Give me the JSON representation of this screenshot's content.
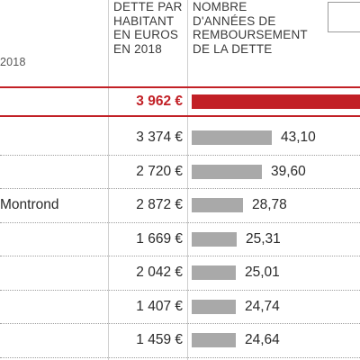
{
  "header": {
    "left_year": "2018",
    "col_debt": "DETTE PAR\nHABITANT\nEN EUROS\nEN 2018",
    "col_years": "NOMBRE\nD'ANNÉES DE\nREMBOURSEMENT\nDE LA DETTE"
  },
  "highlight": {
    "debt": "3 962 €",
    "bar_fraction": 1.0
  },
  "rows": [
    {
      "name": "",
      "debt": "3 374 €",
      "years": "43,10",
      "years_value": 43.1
    },
    {
      "name": "",
      "debt": "2 720 €",
      "years": "39,60",
      "years_value": 39.6
    },
    {
      "name": "Montrond",
      "debt": "2 872 €",
      "years": "28,78",
      "years_value": 28.78
    },
    {
      "name": "",
      "debt": "1 669 €",
      "years": "25,31",
      "years_value": 25.31
    },
    {
      "name": "",
      "debt": "2 042 €",
      "years": "25,01",
      "years_value": 25.01
    },
    {
      "name": "",
      "debt": "1 407 €",
      "years": "24,74",
      "years_value": 24.74
    },
    {
      "name": "",
      "debt": "1 459 €",
      "years": "24,64",
      "years_value": 24.64
    }
  ],
  "colors": {
    "accent": "#c22026",
    "bar": "#a9a9a9"
  }
}
